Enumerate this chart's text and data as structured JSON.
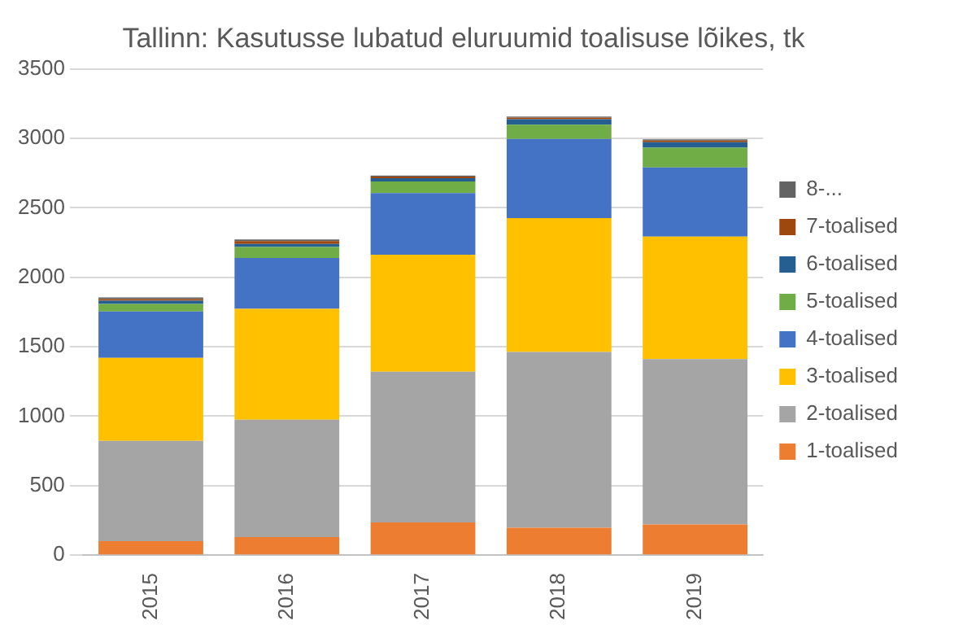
{
  "chart_data": {
    "type": "bar",
    "title": "Tallinn: Kasutusse lubatud eluruumid toalisuse lõikes, tk",
    "categories": [
      "2015",
      "2016",
      "2017",
      "2018",
      "2019"
    ],
    "stacked": true,
    "series": [
      {
        "name": "1-toalised",
        "color": "#ed7d31",
        "values": [
          100,
          130,
          236,
          197,
          220
        ]
      },
      {
        "name": "2-toalised",
        "color": "#a5a5a5",
        "values": [
          722,
          845,
          1085,
          1266,
          1192
        ]
      },
      {
        "name": "3-toalised",
        "color": "#ffc000",
        "values": [
          598,
          798,
          842,
          963,
          881
        ]
      },
      {
        "name": "4-toalised",
        "color": "#4472c4",
        "values": [
          334,
          366,
          444,
          570,
          499
        ]
      },
      {
        "name": "5-toalised",
        "color": "#70ad47",
        "values": [
          55,
          79,
          83,
          103,
          142
        ]
      },
      {
        "name": "6-toalised",
        "color": "#255e91",
        "values": [
          23,
          23,
          23,
          39,
          39
        ]
      },
      {
        "name": "7-toalised",
        "color": "#9e480e",
        "values": [
          12,
          20,
          12,
          12,
          12
        ]
      },
      {
        "name": "8-...",
        "color": "#636363",
        "values": [
          12,
          12,
          8,
          7,
          8
        ]
      }
    ],
    "ylim": [
      0,
      3500
    ],
    "yticks": [
      0,
      500,
      1000,
      1500,
      2000,
      2500,
      3000,
      3500
    ],
    "grid": "y",
    "legend": "right"
  }
}
